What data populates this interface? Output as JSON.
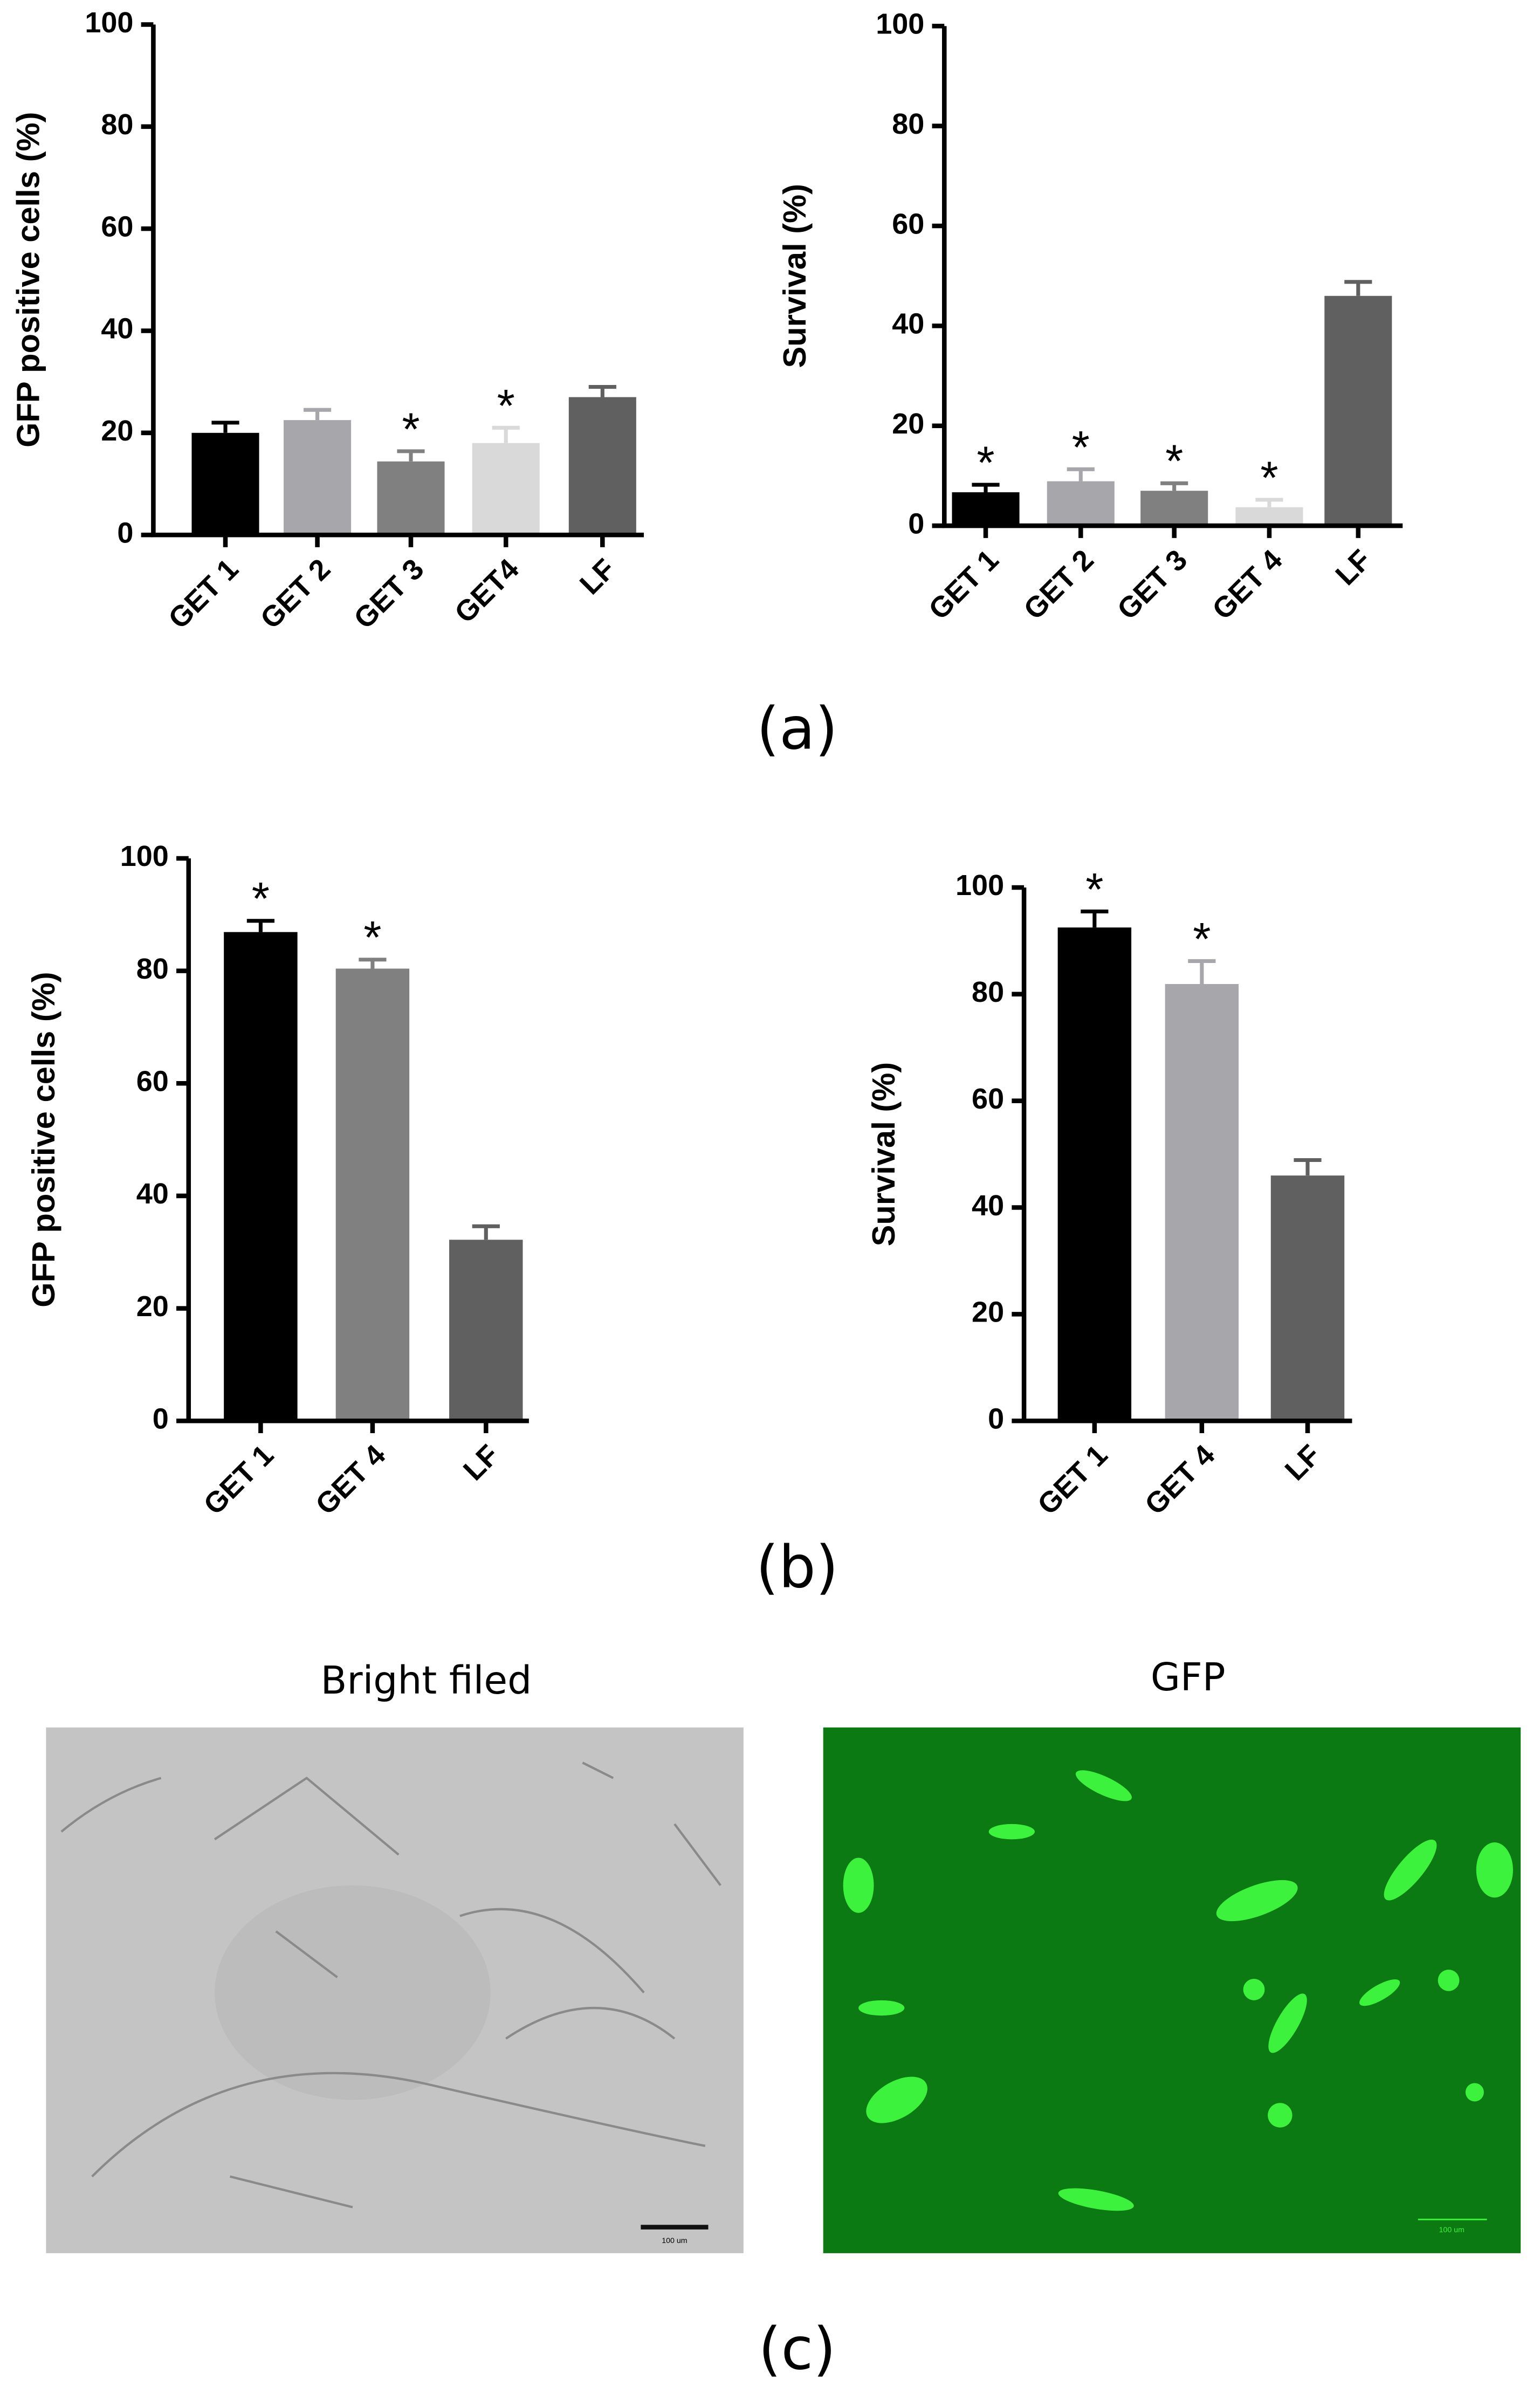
{
  "chart_data": [
    {
      "type": "bar",
      "y_label": "GFP positive cells (%)",
      "categories": [
        "GET 1",
        "GET 2",
        "GET 3",
        "GET4",
        "LF"
      ],
      "values": [
        20,
        22.5,
        14.4,
        18,
        27
      ],
      "errors": [
        2,
        2,
        2,
        3,
        2
      ],
      "annotations": [
        null,
        null,
        "*",
        "*",
        null
      ],
      "colors": [
        "#000000",
        "#a6a6ab",
        "#808080",
        "#d9d9d9",
        "#606060"
      ],
      "ylim": [
        0,
        100
      ],
      "yticks": [
        0,
        20,
        40,
        60,
        80,
        100
      ]
    },
    {
      "type": "bar",
      "y_label": "Survival (%)",
      "categories": [
        "GET 1",
        "GET 2",
        "GET 3",
        "GET 4",
        "LF"
      ],
      "values": [
        6.7,
        8.9,
        7,
        3.7,
        46
      ],
      "errors": [
        1.5,
        2.4,
        1.5,
        1.5,
        2.8
      ],
      "annotations": [
        "*",
        "*",
        "*",
        "*",
        null
      ],
      "colors": [
        "#000000",
        "#a6a6ab",
        "#808080",
        "#d9d9d9",
        "#606060"
      ],
      "ylim": [
        0,
        100
      ],
      "yticks": [
        0,
        20,
        40,
        60,
        80,
        100
      ]
    },
    {
      "type": "bar",
      "y_label": "GFP positive cells (%)",
      "categories": [
        "GET 1",
        "GET 4",
        "LF"
      ],
      "values": [
        86.9,
        80.4,
        32.2
      ],
      "errors": [
        2,
        1.6,
        2.4
      ],
      "annotations": [
        "*",
        "*",
        null
      ],
      "colors": [
        "#000000",
        "#808080",
        "#606060"
      ],
      "ylim": [
        0,
        100
      ],
      "yticks": [
        0,
        20,
        40,
        60,
        80,
        100
      ]
    },
    {
      "type": "bar",
      "y_label": "Survival (%)",
      "categories": [
        "GET 1",
        "GET 4",
        "LF"
      ],
      "values": [
        92.5,
        81.9,
        46
      ],
      "errors": [
        3,
        4.3,
        2.9
      ],
      "annotations": [
        "*",
        "*",
        null
      ],
      "colors": [
        "#000000",
        "#a6a6ab",
        "#606060"
      ],
      "ylim": [
        0,
        100
      ],
      "yticks": [
        0,
        20,
        40,
        60,
        80,
        100
      ]
    }
  ],
  "figure": {
    "panel_labels": [
      "(a)",
      "(b)",
      "(c)"
    ],
    "images": [
      {
        "title": "Bright filed",
        "scale_bar": "100 um"
      },
      {
        "title": "GFP",
        "scale_bar": "100 um"
      }
    ]
  }
}
